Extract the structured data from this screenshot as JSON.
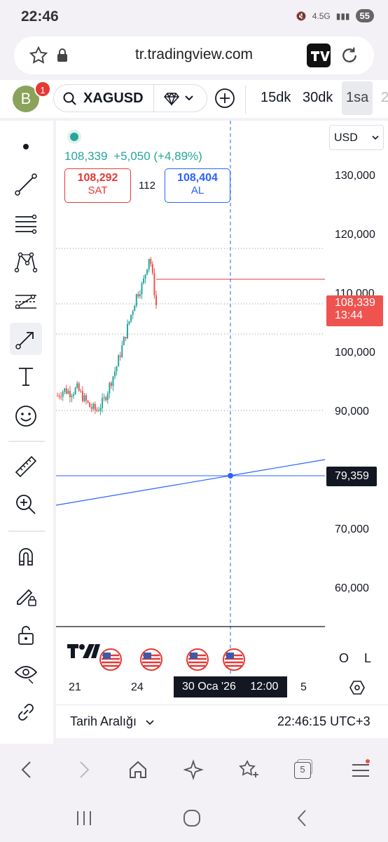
{
  "status": {
    "time": "22:46",
    "network": "4.5G",
    "battery": "55"
  },
  "browser": {
    "url": "tr.tradingview.com"
  },
  "header": {
    "avatar_letter": "B",
    "notification_count": "1",
    "symbol": "XAGUSD",
    "timeframes": [
      "15dk",
      "30dk",
      "1sa",
      "2"
    ]
  },
  "chart": {
    "price": "108,339",
    "change": "+5,050 (+4,89%)",
    "sell_price": "108,292",
    "sell_label": "SAT",
    "spread": "112",
    "buy_price": "108,404",
    "buy_label": "AL",
    "currency": "USD",
    "y_ticks": [
      "130,000",
      "120,000",
      "110,000",
      "100,000",
      "90,000",
      "79,359",
      "70,000",
      "60,000"
    ],
    "last_price_label": "108,339",
    "countdown": "13:44",
    "x_ticks": [
      "21",
      "24",
      "5"
    ],
    "crosshair_date": "30 Oca '26",
    "crosshair_time": "12:00",
    "btn_o": "O",
    "btn_l": "L",
    "date_range": "Tarih Aralığı",
    "clock": "22:46:15 UTC+3",
    "colors": {
      "up": "#26a69a",
      "down": "#ef5350",
      "drawing": "#2962ff",
      "sell": "#e53935",
      "buy": "#2962ff"
    }
  },
  "chart_data": {
    "type": "line",
    "title": "XAGUSD",
    "ylabel": "USD",
    "ylim": [
      55000,
      135000
    ],
    "series": [
      {
        "name": "XAGUSD",
        "values": [
          93000,
          94000,
          93500,
          94200,
          92500,
          91000,
          90500,
          92000,
          95000,
          98000,
          102000,
          106000,
          110000,
          112000,
          117000,
          108339
        ]
      }
    ]
  },
  "nav": {
    "tabs_count": "5"
  }
}
